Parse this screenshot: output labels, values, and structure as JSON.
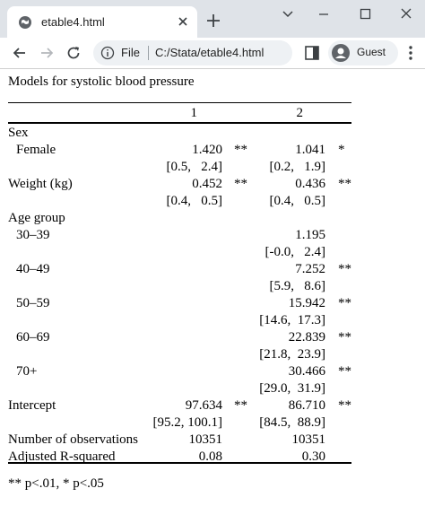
{
  "browser": {
    "tab_title": "etable4.html",
    "omnibox_label": "File",
    "url": "C:/Stata/etable4.html",
    "profile_label": "Guest"
  },
  "table": {
    "caption": "Models for systolic blood pressure",
    "col_headers": [
      "1",
      "2"
    ],
    "rows": [
      {
        "label": "Sex",
        "indent": false,
        "c1": "",
        "s1": "",
        "c2": "",
        "s2": ""
      },
      {
        "label": "Female",
        "indent": true,
        "c1": "1.420",
        "s1": "**",
        "c2": "1.041",
        "s2": "*"
      },
      {
        "label": "",
        "indent": true,
        "c1": "[0.5,   2.4]",
        "s1": "",
        "c2": "[0.2,   1.9]",
        "s2": ""
      },
      {
        "label": "Weight (kg)",
        "indent": false,
        "c1": "0.452",
        "s1": "**",
        "c2": "0.436",
        "s2": "**"
      },
      {
        "label": "",
        "indent": false,
        "c1": "[0.4,   0.5]",
        "s1": "",
        "c2": "[0.4,   0.5]",
        "s2": ""
      },
      {
        "label": "Age group",
        "indent": false,
        "c1": "",
        "s1": "",
        "c2": "",
        "s2": ""
      },
      {
        "label": "30–39",
        "indent": true,
        "c1": "",
        "s1": "",
        "c2": "1.195",
        "s2": ""
      },
      {
        "label": "",
        "indent": true,
        "c1": "",
        "s1": "",
        "c2": "[-0.0,   2.4]",
        "s2": ""
      },
      {
        "label": "40–49",
        "indent": true,
        "c1": "",
        "s1": "",
        "c2": "7.252",
        "s2": "**"
      },
      {
        "label": "",
        "indent": true,
        "c1": "",
        "s1": "",
        "c2": "[5.9,   8.6]",
        "s2": ""
      },
      {
        "label": "50–59",
        "indent": true,
        "c1": "",
        "s1": "",
        "c2": "15.942",
        "s2": "**"
      },
      {
        "label": "",
        "indent": true,
        "c1": "",
        "s1": "",
        "c2": "[14.6,  17.3]",
        "s2": ""
      },
      {
        "label": "60–69",
        "indent": true,
        "c1": "",
        "s1": "",
        "c2": "22.839",
        "s2": "**"
      },
      {
        "label": "",
        "indent": true,
        "c1": "",
        "s1": "",
        "c2": "[21.8,  23.9]",
        "s2": ""
      },
      {
        "label": "70+",
        "indent": true,
        "c1": "",
        "s1": "",
        "c2": "30.466",
        "s2": "**"
      },
      {
        "label": "",
        "indent": true,
        "c1": "",
        "s1": "",
        "c2": "[29.0,  31.9]",
        "s2": ""
      },
      {
        "label": "Intercept",
        "indent": false,
        "c1": "97.634",
        "s1": "**",
        "c2": "86.710",
        "s2": "**"
      },
      {
        "label": "",
        "indent": false,
        "c1": "[95.2, 100.1]",
        "s1": "",
        "c2": "[84.5,  88.9]",
        "s2": ""
      },
      {
        "label": "Number of observations",
        "indent": false,
        "c1": "10351",
        "s1": "",
        "c2": "10351",
        "s2": ""
      },
      {
        "label": "Adjusted R-squared",
        "indent": false,
        "c1": "0.08",
        "s1": "",
        "c2": "0.30",
        "s2": ""
      }
    ],
    "footnote": "** p<.01, * p<.05"
  }
}
